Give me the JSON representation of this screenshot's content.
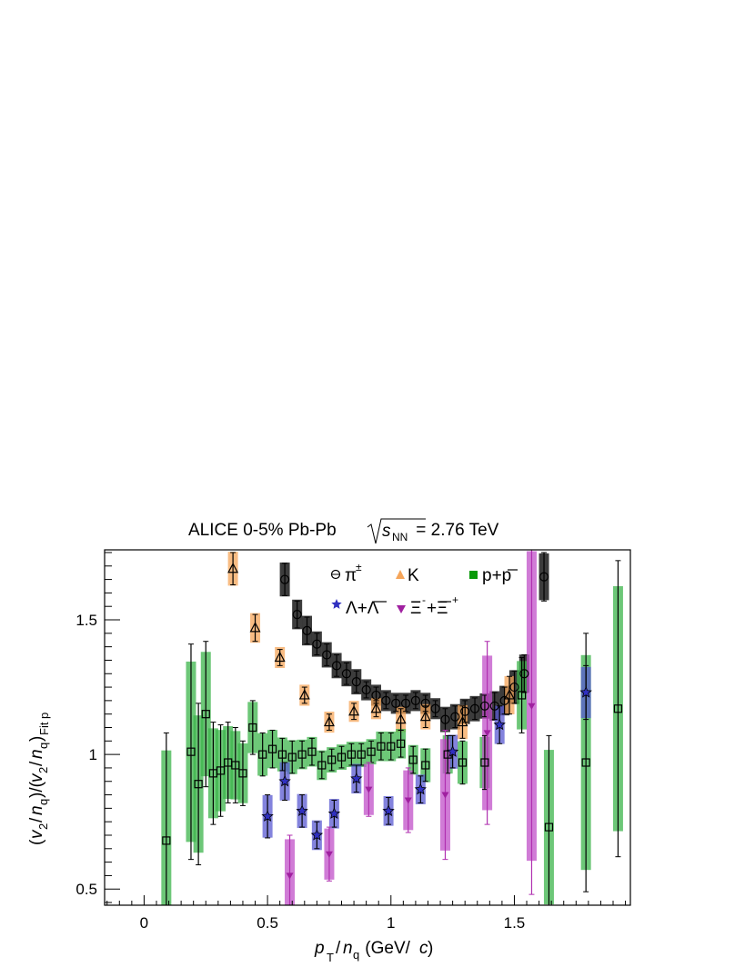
{
  "chart_data": {
    "type": "scatter",
    "title": {
      "prefix": "ALICE 0-5% Pb-Pb ",
      "sqrt_var": "s",
      "sqrt_sub": "NN",
      "suffix": " = 2.76 TeV"
    },
    "xlabel": {
      "p": "p",
      "p_sub": "T",
      "slash": "/",
      "n": "n",
      "n_sub": "q",
      "units": " (GeV/",
      "c": "c",
      "close": ")"
    },
    "ylabel": {
      "open": "(",
      "v": "v",
      "v_sub": "2",
      "slash": "/",
      "n": "n",
      "n_sub": "q",
      "mid": ")/(",
      "close": ")",
      "sub": "Fit p"
    },
    "xlim": [
      -0.16,
      1.97
    ],
    "ylim": [
      0.44,
      1.76
    ],
    "xticks": [
      0,
      0.5,
      1,
      1.5
    ],
    "xtick_labels": [
      "0",
      "0.5",
      "1",
      "1.5"
    ],
    "yticks": [
      0.5,
      1,
      1.5
    ],
    "ytick_labels": [
      "0.5",
      "1",
      "1.5"
    ],
    "grid": false,
    "legend_placement": "top-right",
    "series": [
      {
        "name": "π±",
        "name_base": "π",
        "name_sup": "±",
        "marker": "circle-open",
        "color": "#000000",
        "band_color": "#1a1a1a",
        "points": [
          [
            0.57,
            1.65,
            0.06
          ],
          [
            0.62,
            1.52,
            0.05
          ],
          [
            0.66,
            1.46,
            0.05
          ],
          [
            0.7,
            1.41,
            0.04
          ],
          [
            0.74,
            1.37,
            0.04
          ],
          [
            0.78,
            1.33,
            0.04
          ],
          [
            0.82,
            1.3,
            0.04
          ],
          [
            0.86,
            1.27,
            0.04
          ],
          [
            0.9,
            1.24,
            0.03
          ],
          [
            0.94,
            1.22,
            0.03
          ],
          [
            0.98,
            1.2,
            0.03
          ],
          [
            1.02,
            1.19,
            0.03
          ],
          [
            1.06,
            1.19,
            0.03
          ],
          [
            1.1,
            1.2,
            0.03
          ],
          [
            1.14,
            1.19,
            0.03
          ],
          [
            1.18,
            1.17,
            0.03
          ],
          [
            1.22,
            1.13,
            0.04
          ],
          [
            1.26,
            1.14,
            0.04
          ],
          [
            1.3,
            1.16,
            0.04
          ],
          [
            1.34,
            1.17,
            0.04
          ],
          [
            1.38,
            1.18,
            0.04
          ],
          [
            1.42,
            1.18,
            0.05
          ],
          [
            1.46,
            1.2,
            0.05
          ],
          [
            1.5,
            1.25,
            0.06
          ],
          [
            1.54,
            1.3,
            0.07
          ],
          [
            1.62,
            1.66,
            0.09
          ]
        ]
      },
      {
        "name": "K",
        "name_base": "K",
        "name_sup": "",
        "marker": "triangle-open",
        "color": "#000000",
        "band_color": "#f5a55a",
        "points": [
          [
            0.36,
            1.69,
            0.06
          ],
          [
            0.45,
            1.47,
            0.05
          ],
          [
            0.55,
            1.36,
            0.03
          ],
          [
            0.65,
            1.22,
            0.03
          ],
          [
            0.75,
            1.12,
            0.03
          ],
          [
            0.85,
            1.16,
            0.03
          ],
          [
            0.94,
            1.17,
            0.03
          ],
          [
            1.04,
            1.13,
            0.04
          ],
          [
            1.14,
            1.14,
            0.04
          ],
          [
            1.29,
            1.12,
            0.06
          ],
          [
            1.48,
            1.22,
            0.07
          ]
        ]
      },
      {
        "name": "p+p̅",
        "name_base": "p+p",
        "name_sup": "",
        "marker": "square-open",
        "color": "#000000",
        "band_color": "#3cb44b",
        "points": [
          [
            0.09,
            0.68,
            0.4
          ],
          [
            0.19,
            1.01,
            0.4
          ],
          [
            0.22,
            0.89,
            0.3
          ],
          [
            0.25,
            1.15,
            0.27
          ],
          [
            0.28,
            0.93,
            0.19
          ],
          [
            0.31,
            0.94,
            0.17
          ],
          [
            0.34,
            0.97,
            0.15
          ],
          [
            0.37,
            0.96,
            0.14
          ],
          [
            0.4,
            0.93,
            0.12
          ],
          [
            0.44,
            1.1,
            0.1
          ],
          [
            0.48,
            1.0,
            0.08
          ],
          [
            0.52,
            1.02,
            0.07
          ],
          [
            0.56,
            1.0,
            0.06
          ],
          [
            0.6,
            0.99,
            0.06
          ],
          [
            0.64,
            1.0,
            0.05
          ],
          [
            0.68,
            1.01,
            0.05
          ],
          [
            0.72,
            0.96,
            0.05
          ],
          [
            0.76,
            0.98,
            0.04
          ],
          [
            0.8,
            0.99,
            0.04
          ],
          [
            0.84,
            1.0,
            0.04
          ],
          [
            0.88,
            1.0,
            0.04
          ],
          [
            0.92,
            1.01,
            0.04
          ],
          [
            0.96,
            1.03,
            0.05
          ],
          [
            1.0,
            1.03,
            0.05
          ],
          [
            1.04,
            1.04,
            0.05
          ],
          [
            1.09,
            0.98,
            0.05
          ],
          [
            1.14,
            0.96,
            0.06
          ],
          [
            1.23,
            1.0,
            0.07
          ],
          [
            1.29,
            0.97,
            0.08
          ],
          [
            1.38,
            0.97,
            0.1
          ],
          [
            1.53,
            1.22,
            0.14
          ],
          [
            1.64,
            0.73,
            0.34
          ],
          [
            1.79,
            0.97,
            0.48
          ],
          [
            1.92,
            1.17,
            0.55
          ]
        ]
      },
      {
        "name": "Λ+Λ̅",
        "name_base": "Λ+Λ",
        "name_sup": "",
        "marker": "star-open",
        "color": "#000000",
        "band_color": "#5a5ad2",
        "points": [
          [
            0.5,
            0.77,
            0.08
          ],
          [
            0.57,
            0.9,
            0.07
          ],
          [
            0.64,
            0.79,
            0.06
          ],
          [
            0.7,
            0.7,
            0.05
          ],
          [
            0.77,
            0.78,
            0.05
          ],
          [
            0.86,
            0.91,
            0.05
          ],
          [
            0.99,
            0.79,
            0.05
          ],
          [
            1.12,
            0.87,
            0.05
          ],
          [
            1.25,
            1.01,
            0.06
          ],
          [
            1.44,
            1.11,
            0.07
          ],
          [
            1.79,
            1.23,
            0.1
          ]
        ]
      },
      {
        "name": "Ξ⁻+Ξ̅⁺",
        "name_base": "Ξ⁻+Ξ⁺",
        "name_sup": "",
        "marker": "triangle-down-filled",
        "color": "#b030b0",
        "band_color": "#c050c8",
        "points": [
          [
            0.59,
            0.55,
            0.15
          ],
          [
            0.75,
            0.63,
            0.1
          ],
          [
            0.91,
            0.87,
            0.1
          ],
          [
            1.07,
            0.83,
            0.12
          ],
          [
            1.22,
            0.85,
            0.24
          ],
          [
            1.39,
            1.08,
            0.34
          ],
          [
            1.57,
            1.18,
            0.7
          ]
        ]
      }
    ],
    "legend": [
      {
        "label": "π",
        "sup": "±"
      },
      {
        "label": "K",
        "sup": ""
      },
      {
        "label": "p+p",
        "bar_over": "p",
        "sup": ""
      },
      {
        "label": "Λ+Λ",
        "bar_over": "Λ",
        "sup": ""
      },
      {
        "label": "Ξ",
        "sup": "-",
        "label2": "+Ξ",
        "bar_over": "Ξ",
        "sup2": "+"
      }
    ]
  }
}
